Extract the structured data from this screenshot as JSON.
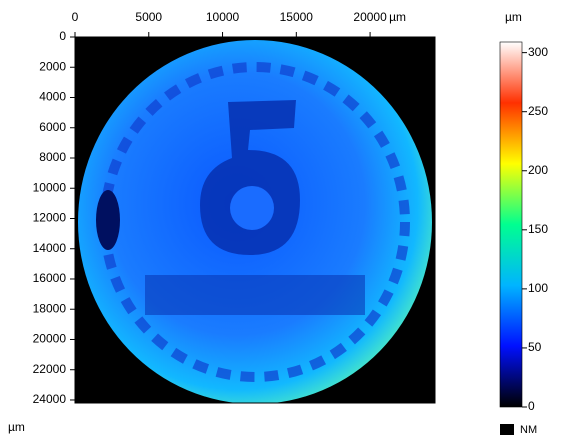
{
  "chart_data": {
    "type": "image",
    "x_unit": "µm",
    "y_unit": "µm",
    "xlim": [
      0,
      24400
    ],
    "xticks": [
      0,
      5000,
      10000,
      15000,
      20000
    ],
    "ylim": [
      0,
      24200
    ],
    "yticks": [
      0,
      2000,
      4000,
      6000,
      8000,
      10000,
      12000,
      14000,
      16000,
      18000,
      20000,
      22000,
      24000
    ],
    "colorbar": {
      "unit": "µm",
      "lim": [
        0,
        309
      ],
      "ticks": [
        0,
        50,
        100,
        150,
        200,
        250,
        300
      ],
      "colormap": [
        "#000000",
        "#0010ff",
        "#00b4ff",
        "#00ff90",
        "#ffff00",
        "#ff3000",
        "#ffffff"
      ],
      "missing_label": "NM",
      "missing_color": "#000000"
    }
  }
}
